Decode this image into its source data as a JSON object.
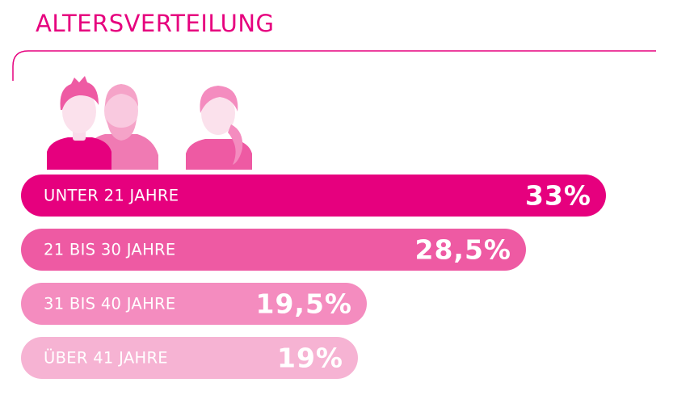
{
  "title": "ALTERSVERTEILUNG",
  "colors": {
    "accent": "#e6007e",
    "bars": [
      "#e6007e",
      "#ee5aa3",
      "#f48cbf",
      "#f6b3d3"
    ]
  },
  "icons": [
    "man-icon",
    "bearded-man-icon",
    "woman-icon"
  ],
  "chart_data": {
    "type": "bar",
    "orientation": "horizontal",
    "categories": [
      "UNTER 21 JAHRE",
      "21 BIS 30 JAHRE",
      "31 BIS 40 JAHRE",
      "ÜBER 41 JAHRE"
    ],
    "values": [
      33,
      28.5,
      19.5,
      19
    ],
    "value_labels": [
      "33%",
      "28,5%",
      "19,5%",
      "19%"
    ],
    "unit": "%",
    "xlim": [
      0,
      33
    ]
  }
}
